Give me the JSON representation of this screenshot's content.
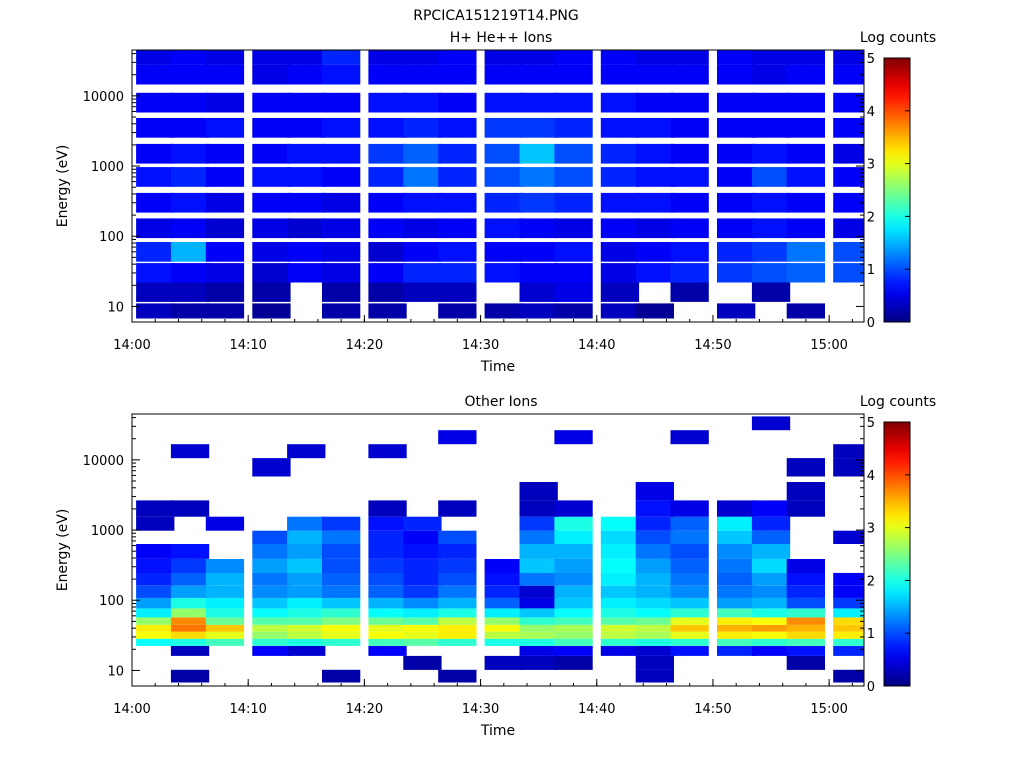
{
  "figure_title": "RPCICA151219T14.PNG",
  "chart_data": [
    {
      "type": "heatmap",
      "title": "H+ He++ Ions",
      "xlabel": "Time",
      "ylabel": "Energy (eV)",
      "x_ticks": [
        "14:00",
        "14:10",
        "14:20",
        "14:30",
        "14:40",
        "14:50",
        "15:00"
      ],
      "y_ticks": [
        "10",
        "100",
        "1000",
        "10000"
      ],
      "y_scale": "log",
      "xlim": [
        "14:00",
        "15:03"
      ],
      "ylim": [
        6,
        45000
      ],
      "colorbar": {
        "label": "Log counts",
        "ticks": [
          "0",
          "1",
          "2",
          "3",
          "4",
          "5"
        ],
        "range": [
          0,
          5
        ]
      },
      "time_bins": [
        "14:02",
        "14:05",
        "14:08",
        "14:12",
        "14:15",
        "14:18",
        "14:22",
        "14:25",
        "14:28",
        "14:32",
        "14:35",
        "14:38",
        "14:42",
        "14:45",
        "14:48",
        "14:52",
        "14:55",
        "14:58",
        "15:02"
      ],
      "energy_bands": [
        {
          "energy_ev": 8,
          "values": [
            0.3,
            0.2,
            0.2,
            0.1,
            null,
            0.2,
            0.2,
            null,
            0.2,
            0.2,
            0.3,
            0.2,
            0.3,
            0.1,
            null,
            0.3,
            null,
            0.2,
            null
          ]
        },
        {
          "energy_ev": 16,
          "values": [
            0.3,
            0.3,
            0.2,
            0.2,
            null,
            0.2,
            0.2,
            0.3,
            0.3,
            null,
            0.4,
            0.5,
            0.3,
            null,
            0.2,
            null,
            0.2,
            null,
            null
          ]
        },
        {
          "energy_ev": 30,
          "values": [
            0.7,
            0.6,
            0.5,
            0.4,
            0.6,
            0.5,
            0.6,
            0.8,
            0.8,
            0.7,
            0.6,
            0.6,
            0.5,
            0.7,
            0.8,
            0.9,
            1.0,
            1.1,
            1.0
          ]
        },
        {
          "energy_ev": 60,
          "values": [
            0.8,
            1.5,
            0.6,
            0.5,
            0.6,
            0.5,
            0.4,
            0.6,
            0.7,
            0.6,
            0.6,
            0.7,
            0.5,
            0.6,
            0.7,
            0.8,
            0.9,
            1.2,
            1.0
          ]
        },
        {
          "energy_ev": 130,
          "values": [
            0.5,
            0.6,
            0.4,
            0.5,
            0.4,
            0.5,
            0.6,
            0.5,
            0.6,
            0.7,
            0.6,
            0.5,
            0.6,
            0.5,
            0.6,
            0.6,
            0.7,
            0.6,
            0.5
          ]
        },
        {
          "energy_ev": 300,
          "values": [
            0.6,
            0.7,
            0.5,
            0.6,
            0.6,
            0.5,
            0.6,
            0.7,
            0.7,
            0.8,
            0.9,
            0.8,
            0.7,
            0.7,
            0.6,
            0.6,
            0.7,
            0.6,
            0.6
          ]
        },
        {
          "energy_ev": 700,
          "values": [
            0.7,
            0.8,
            0.6,
            0.7,
            0.7,
            0.6,
            0.8,
            1.2,
            0.8,
            1.0,
            1.2,
            1.0,
            0.8,
            0.7,
            0.7,
            0.6,
            1.0,
            0.7,
            0.6
          ]
        },
        {
          "energy_ev": 1500,
          "values": [
            0.6,
            0.7,
            0.6,
            0.6,
            0.7,
            0.7,
            0.9,
            1.1,
            0.8,
            1.0,
            1.6,
            1.0,
            0.8,
            0.7,
            0.6,
            0.6,
            0.7,
            0.6,
            0.5
          ]
        },
        {
          "energy_ev": 3500,
          "values": [
            0.6,
            0.6,
            0.7,
            0.6,
            0.6,
            0.7,
            0.7,
            0.8,
            0.7,
            0.9,
            0.9,
            0.8,
            0.7,
            0.7,
            0.6,
            0.6,
            0.6,
            0.6,
            0.6
          ]
        },
        {
          "energy_ev": 8000,
          "values": [
            0.6,
            0.6,
            0.5,
            0.6,
            0.6,
            0.6,
            0.7,
            0.7,
            0.6,
            0.7,
            0.7,
            0.7,
            0.7,
            0.6,
            0.6,
            0.6,
            0.6,
            0.6,
            0.6
          ]
        },
        {
          "energy_ev": 20000,
          "values": [
            0.6,
            0.6,
            0.6,
            0.5,
            0.6,
            0.7,
            0.6,
            0.6,
            0.6,
            0.6,
            0.6,
            0.6,
            0.6,
            0.6,
            0.6,
            0.6,
            0.5,
            0.6,
            0.6
          ]
        },
        {
          "energy_ev": 38000,
          "values": [
            0.5,
            0.6,
            0.5,
            0.5,
            0.5,
            0.8,
            0.5,
            0.5,
            0.6,
            0.5,
            0.5,
            0.6,
            0.6,
            0.5,
            0.5,
            0.6,
            0.5,
            0.5,
            0.5
          ]
        }
      ]
    },
    {
      "type": "heatmap",
      "title": "Other Ions",
      "xlabel": "Time",
      "ylabel": "Energy (eV)",
      "x_ticks": [
        "14:00",
        "14:10",
        "14:20",
        "14:30",
        "14:40",
        "14:50",
        "15:00"
      ],
      "y_ticks": [
        "10",
        "100",
        "1000",
        "10000"
      ],
      "y_scale": "log",
      "xlim": [
        "14:00",
        "15:03"
      ],
      "ylim": [
        6,
        45000
      ],
      "colorbar": {
        "label": "Log counts",
        "ticks": [
          "0",
          "1",
          "2",
          "3",
          "4",
          "5"
        ],
        "range": [
          0,
          5
        ]
      },
      "time_bins": [
        "14:02",
        "14:05",
        "14:08",
        "14:12",
        "14:15",
        "14:18",
        "14:22",
        "14:25",
        "14:28",
        "14:32",
        "14:35",
        "14:38",
        "14:42",
        "14:45",
        "14:48",
        "14:52",
        "14:55",
        "14:58",
        "15:02"
      ],
      "energy_bands": [
        {
          "energy_ev": 8,
          "values": [
            null,
            0.2,
            null,
            null,
            null,
            0.2,
            null,
            null,
            0.2,
            null,
            null,
            null,
            null,
            0.3,
            null,
            null,
            null,
            null,
            0.2
          ]
        },
        {
          "energy_ev": 13,
          "values": [
            null,
            null,
            null,
            null,
            null,
            null,
            null,
            0.2,
            null,
            0.3,
            0.3,
            0.2,
            null,
            0.3,
            null,
            null,
            null,
            0.2,
            null
          ]
        },
        {
          "energy_ev": 20,
          "values": [
            null,
            0.3,
            null,
            0.6,
            0.4,
            null,
            0.6,
            null,
            null,
            null,
            0.5,
            0.6,
            0.5,
            0.4,
            0.7,
            0.8,
            0.6,
            0.7,
            0.8
          ]
        },
        {
          "energy_ev": 25,
          "values": [
            1.9,
            2.0,
            2.2,
            2.1,
            2.0,
            2.1,
            2.2,
            2.3,
            2.1,
            2.0,
            2.0,
            2.2,
            2.1,
            2.0,
            2.1,
            2.2,
            2.1,
            2.2,
            2.1
          ]
        },
        {
          "energy_ev": 32,
          "values": [
            3.1,
            3.3,
            3.0,
            2.6,
            2.8,
            3.0,
            3.1,
            3.0,
            3.2,
            2.8,
            2.7,
            2.6,
            2.8,
            2.7,
            3.0,
            3.2,
            3.1,
            3.3,
            3.2
          ]
        },
        {
          "energy_ev": 40,
          "values": [
            3.2,
            3.8,
            3.4,
            2.8,
            2.9,
            3.1,
            3.0,
            3.1,
            3.2,
            3.1,
            2.6,
            2.7,
            2.9,
            2.8,
            3.4,
            3.5,
            3.6,
            3.5,
            3.4
          ]
        },
        {
          "energy_ev": 50,
          "values": [
            2.6,
            3.7,
            2.4,
            2.3,
            2.3,
            2.5,
            2.4,
            2.3,
            2.8,
            2.6,
            2.1,
            2.2,
            2.3,
            2.4,
            3.0,
            3.2,
            3.1,
            3.7,
            3.3
          ]
        },
        {
          "energy_ev": 65,
          "values": [
            1.8,
            2.6,
            2.0,
            1.9,
            2.0,
            2.1,
            1.9,
            1.8,
            2.0,
            1.8,
            1.6,
            1.9,
            2.0,
            1.9,
            2.1,
            2.2,
            2.0,
            2.1,
            1.8
          ]
        },
        {
          "energy_ev": 90,
          "values": [
            1.4,
            2.0,
            1.8,
            1.6,
            1.8,
            1.6,
            1.5,
            1.3,
            1.5,
            1.1,
            0.5,
            1.6,
            1.8,
            1.7,
            1.6,
            1.4,
            1.5,
            1.0,
            0.9
          ]
        },
        {
          "energy_ev": 130,
          "values": [
            1.0,
            1.4,
            1.5,
            1.3,
            1.4,
            1.2,
            1.1,
            0.9,
            1.2,
            0.8,
            0.4,
            1.5,
            1.6,
            1.5,
            1.3,
            1.2,
            1.3,
            0.8,
            0.6
          ]
        },
        {
          "energy_ev": 200,
          "values": [
            0.8,
            1.1,
            1.5,
            1.2,
            1.4,
            1.1,
            1.0,
            0.8,
            1.0,
            0.7,
            1.2,
            1.3,
            1.8,
            1.5,
            1.2,
            1.1,
            1.4,
            0.7,
            0.6
          ]
        },
        {
          "energy_ev": 300,
          "values": [
            0.7,
            0.9,
            1.3,
            1.4,
            1.6,
            1.0,
            0.9,
            0.8,
            0.9,
            0.6,
            1.6,
            1.4,
            1.9,
            1.4,
            1.1,
            1.2,
            1.7,
            0.5,
            null
          ]
        },
        {
          "energy_ev": 500,
          "values": [
            0.6,
            0.7,
            null,
            1.2,
            1.4,
            1.0,
            0.8,
            0.7,
            0.8,
            null,
            1.5,
            1.5,
            1.8,
            1.2,
            1.0,
            1.3,
            1.5,
            null,
            null
          ]
        },
        {
          "energy_ev": 800,
          "values": [
            null,
            null,
            null,
            1.0,
            1.5,
            1.2,
            0.8,
            0.6,
            1.0,
            null,
            1.2,
            1.8,
            1.7,
            1.0,
            1.2,
            1.6,
            1.1,
            null,
            0.4
          ]
        },
        {
          "energy_ev": 1200,
          "values": [
            0.3,
            null,
            0.5,
            null,
            1.2,
            0.9,
            0.7,
            0.8,
            null,
            null,
            0.9,
            2.0,
            1.9,
            0.8,
            1.1,
            1.8,
            0.8,
            null,
            null
          ]
        },
        {
          "energy_ev": 2000,
          "values": [
            0.3,
            0.3,
            null,
            null,
            null,
            null,
            0.3,
            null,
            0.3,
            null,
            0.3,
            0.4,
            null,
            0.7,
            0.5,
            0.4,
            0.6,
            0.3,
            null
          ]
        },
        {
          "energy_ev": 3500,
          "values": [
            null,
            null,
            null,
            null,
            null,
            null,
            null,
            null,
            null,
            null,
            0.3,
            null,
            null,
            0.5,
            null,
            null,
            null,
            0.3,
            null
          ]
        },
        {
          "energy_ev": 8000,
          "values": [
            null,
            null,
            null,
            0.4,
            null,
            null,
            null,
            null,
            null,
            null,
            null,
            null,
            null,
            null,
            null,
            null,
            null,
            0.3,
            0.3
          ]
        },
        {
          "energy_ev": 14000,
          "values": [
            null,
            0.4,
            null,
            null,
            0.4,
            null,
            0.4,
            null,
            null,
            null,
            null,
            null,
            null,
            null,
            null,
            null,
            null,
            null,
            0.3
          ]
        },
        {
          "energy_ev": 20000,
          "values": [
            null,
            null,
            null,
            null,
            null,
            null,
            null,
            null,
            0.5,
            null,
            null,
            0.5,
            null,
            null,
            0.4,
            null,
            null,
            null,
            null
          ]
        },
        {
          "energy_ev": 35000,
          "values": [
            null,
            null,
            null,
            null,
            null,
            null,
            null,
            null,
            null,
            null,
            null,
            null,
            null,
            null,
            null,
            null,
            0.4,
            null,
            null
          ]
        }
      ]
    }
  ]
}
